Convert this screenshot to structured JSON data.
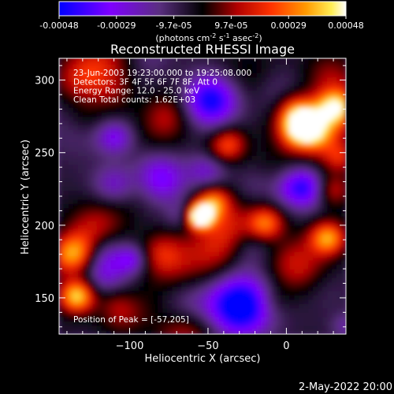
{
  "colorbar": {
    "ticks": [
      "-0.00048",
      "-0.00029",
      "-9.7e-05",
      "9.7e-05",
      "0.00029",
      "0.00048"
    ],
    "unit_main": "(photons cm",
    "unit_exp1": "-2",
    "unit_mid": " s",
    "unit_exp2": "-1",
    "unit_tail": " asec",
    "unit_exp3": "-2",
    "unit_close": ")"
  },
  "chart_data": {
    "type": "heatmap",
    "title": "Reconstructed RHESSI Image",
    "xlabel": "Heliocentric X (arcsec)",
    "ylabel": "Heliocentric Y (arcsec)",
    "xlim": [
      -145,
      38
    ],
    "ylim": [
      125,
      315
    ],
    "xticks": [
      -100,
      -50,
      0
    ],
    "yticks": [
      150,
      200,
      250,
      300
    ],
    "colorscale": [
      "#0000ff",
      "#7f00ff",
      "#5a2f80",
      "#000000",
      "#b00000",
      "#ff3300",
      "#ff9900",
      "#ffee55",
      "#ffffff"
    ],
    "zlim": [
      -0.00048,
      0.00048
    ],
    "peak": [
      -57,
      205
    ],
    "annotations": [
      "23-Jun-2003 19:23:00.000 to 19:25:08.000",
      "Detectors: 3F 4F 5F 6F 7F 8F, Att 0",
      "Energy Range: 12.0 - 25.0 keV",
      "Clean    Total counts: 1.62E+03"
    ],
    "peak_label": "Position of Peak = [-57,205]"
  },
  "footer": {
    "timestamp": "2-May-2022 20:00"
  }
}
